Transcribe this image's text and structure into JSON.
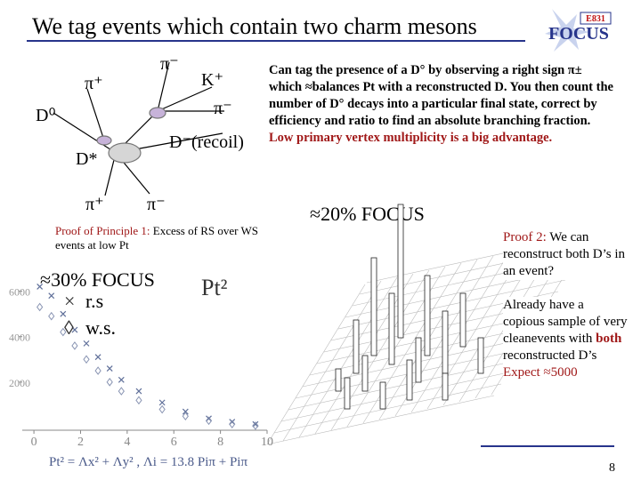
{
  "header": {
    "title": "We tag events which contain two charm mesons",
    "logo_top": "E831",
    "logo": "FOCUS"
  },
  "diagram": {
    "labels": [
      "π⁻",
      "K⁺",
      "π⁺",
      "π⁻",
      "D⁰",
      "D⁻(recoil)",
      "D*",
      "π⁺",
      "π⁻"
    ]
  },
  "description": {
    "text": "Can tag the presence of a D° by observing a right sign π± which ≈balances Pt with a reconstructed D. You then count the number of D° decays into a particular final state, correct by efficiency and ratio to find an absolute branching fraction.",
    "highlight": "Low primary vertex multiplicity is a big advantage."
  },
  "focus20": "≈20% FOCUS",
  "proof1": {
    "label": "Proof of Principle 1:",
    "text": "Excess of RS over WS events at low Pt"
  },
  "chart_data": {
    "type": "scatter",
    "annotation": "≈30% FOCUS",
    "axis_label": "Pt²",
    "caption": "Pt² = Λx² + Λy² , Λi = 13.8 Piπ + Piπ",
    "xlim": [
      -0.5,
      10
    ],
    "ylim": [
      0,
      7000
    ],
    "xticks": [
      0,
      2,
      4,
      6,
      8,
      10
    ],
    "yticks": [
      2000,
      4000,
      6000
    ],
    "series": [
      {
        "name": "r.s",
        "color": "#5f6f99",
        "x": [
          0.25,
          0.75,
          1.25,
          1.75,
          2.25,
          2.75,
          3.25,
          3.75,
          4.5,
          5.5,
          6.5,
          7.5,
          8.5,
          9.5
        ],
        "values": [
          6200,
          5800,
          5000,
          4300,
          3700,
          3100,
          2600,
          2100,
          1600,
          1100,
          700,
          400,
          250,
          150
        ]
      },
      {
        "name": "w.s.",
        "color": "#8a95b3",
        "x": [
          0.25,
          0.75,
          1.25,
          1.75,
          2.25,
          2.75,
          3.25,
          3.75,
          4.5,
          5.5,
          6.5,
          7.5,
          8.5,
          9.5
        ],
        "values": [
          5300,
          4900,
          4200,
          3600,
          3000,
          2500,
          2000,
          1600,
          1200,
          800,
          500,
          300,
          150,
          80
        ]
      }
    ]
  },
  "proof2": {
    "label": "Proof 2:",
    "text": "We can reconstruct both D’s in an event?"
  },
  "note": {
    "text": "Already have a copious sample of very cleanevents with",
    "bold": "both",
    "text2": "reconstructed D’s",
    "expect": "Expect ≈5000"
  },
  "page_number": "8"
}
